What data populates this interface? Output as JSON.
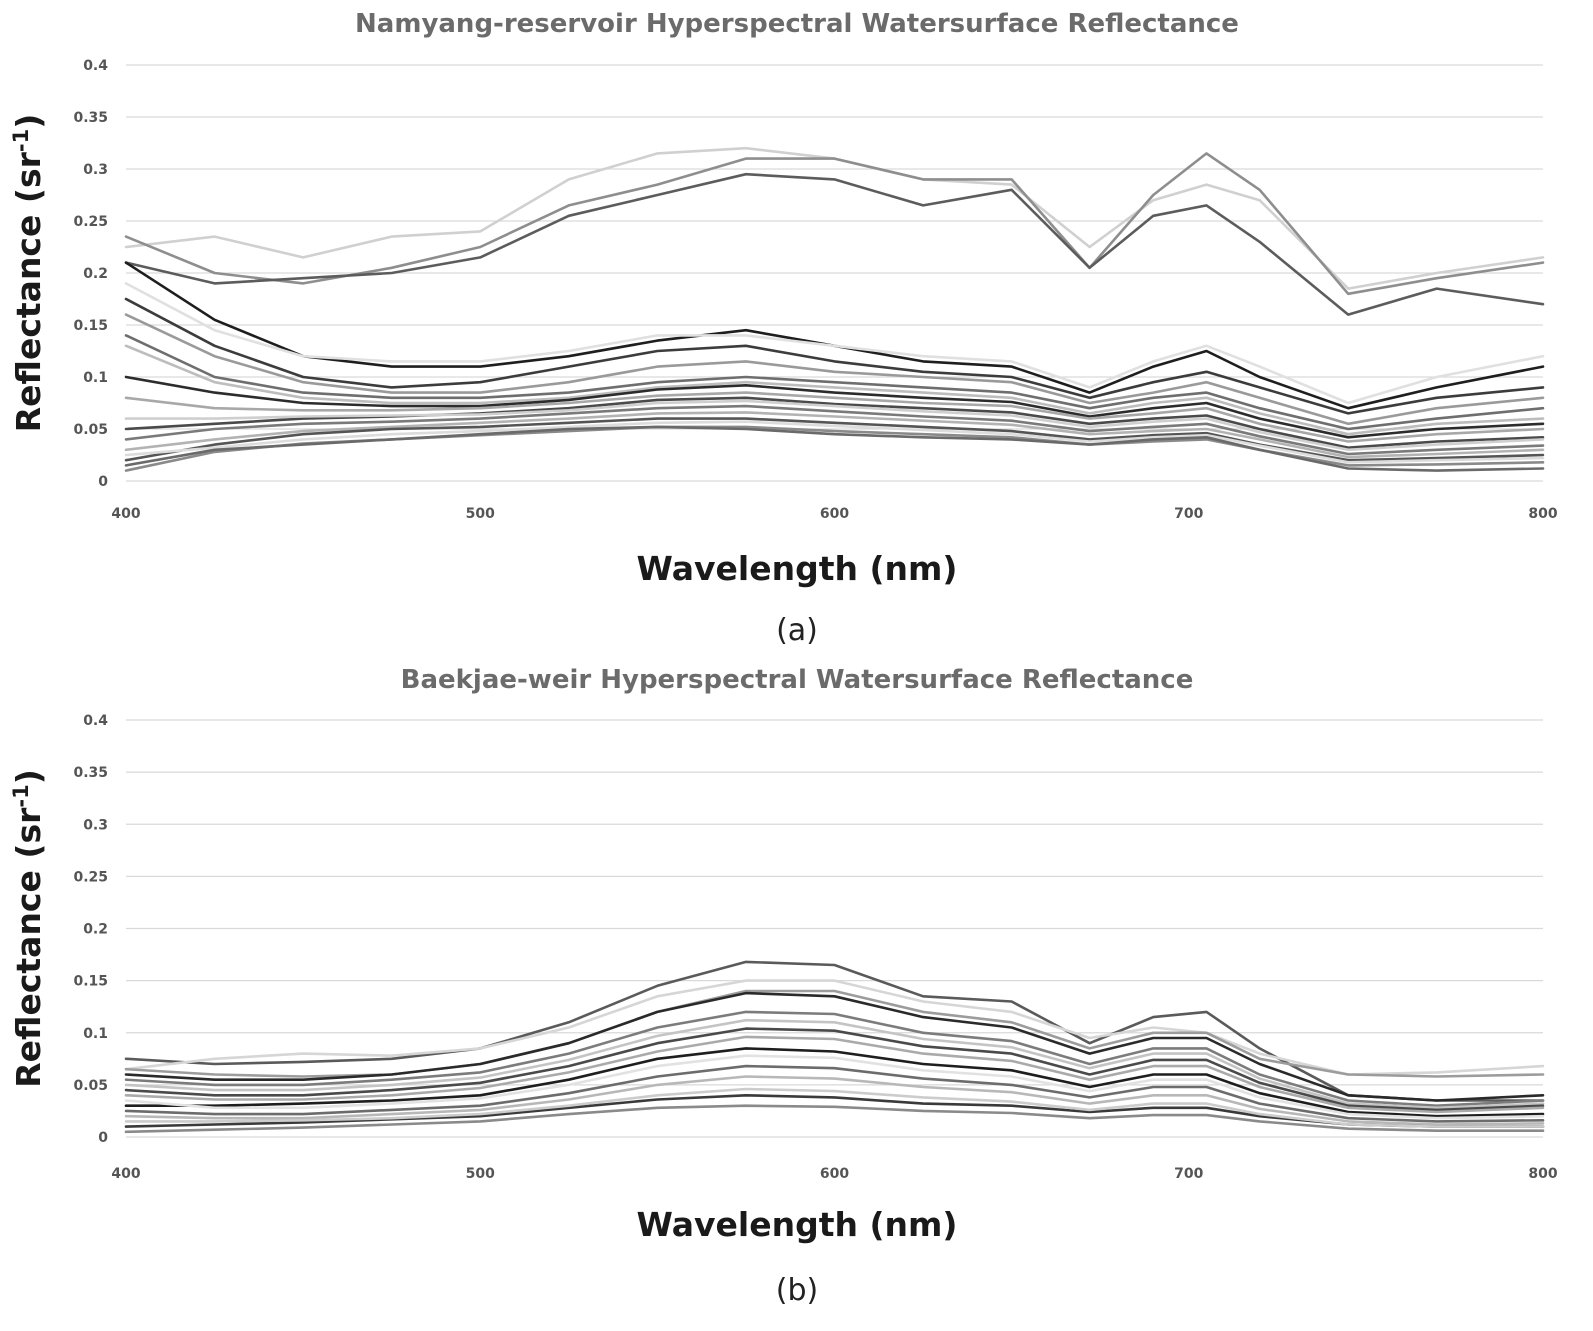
{
  "chart_data": [
    {
      "panel": "a",
      "caption": "(a)",
      "type": "line",
      "title": "Namyang-reservoir Hyperspectral Watersurface Reflectance",
      "xlabel": "Wavelength (nm)",
      "ylabel_main": "Reflectance (sr",
      "ylabel_sup": "-1",
      "ylabel_close": ")",
      "xlim": [
        400,
        800
      ],
      "ylim": [
        0,
        0.4
      ],
      "grid": true,
      "legend": "none",
      "x_ticks": [
        "400",
        "500",
        "600",
        "700",
        "800"
      ],
      "y_ticks": [
        "0",
        "0.05",
        "0.1",
        "0.15",
        "0.2",
        "0.25",
        "0.3",
        "0.35",
        "0.4"
      ],
      "x": [
        400,
        425,
        450,
        475,
        500,
        525,
        550,
        575,
        600,
        625,
        650,
        672,
        690,
        705,
        720,
        745,
        770,
        800
      ],
      "series": [
        {
          "name": "a-high-1",
          "color": "#d0d0d0",
          "values": [
            0.225,
            0.235,
            0.215,
            0.235,
            0.24,
            0.29,
            0.315,
            0.32,
            0.31,
            0.29,
            0.285,
            0.225,
            0.27,
            0.285,
            0.27,
            0.185,
            0.2,
            0.215
          ]
        },
        {
          "name": "a-high-2",
          "color": "#8e8e8e",
          "values": [
            0.235,
            0.2,
            0.19,
            0.205,
            0.225,
            0.265,
            0.285,
            0.31,
            0.31,
            0.29,
            0.29,
            0.205,
            0.275,
            0.315,
            0.28,
            0.18,
            0.195,
            0.21
          ]
        },
        {
          "name": "a-high-3",
          "color": "#5c5c5c",
          "values": [
            0.21,
            0.19,
            0.195,
            0.2,
            0.215,
            0.255,
            0.275,
            0.295,
            0.29,
            0.265,
            0.28,
            0.205,
            0.255,
            0.265,
            0.23,
            0.16,
            0.185,
            0.17
          ]
        },
        {
          "name": "a-mid-1",
          "color": "#1e1e1e",
          "values": [
            0.21,
            0.155,
            0.12,
            0.11,
            0.11,
            0.12,
            0.135,
            0.145,
            0.13,
            0.115,
            0.11,
            0.085,
            0.11,
            0.125,
            0.1,
            0.07,
            0.09,
            0.11
          ]
        },
        {
          "name": "a-mid-2",
          "color": "#e0e0e0",
          "values": [
            0.19,
            0.145,
            0.12,
            0.115,
            0.115,
            0.125,
            0.14,
            0.14,
            0.13,
            0.12,
            0.115,
            0.09,
            0.115,
            0.13,
            0.11,
            0.075,
            0.1,
            0.12
          ]
        },
        {
          "name": "a-mid-3",
          "color": "#3c3c3c",
          "values": [
            0.175,
            0.13,
            0.1,
            0.09,
            0.095,
            0.11,
            0.125,
            0.13,
            0.115,
            0.105,
            0.1,
            0.08,
            0.095,
            0.105,
            0.09,
            0.065,
            0.08,
            0.09
          ]
        },
        {
          "name": "a-mid-4",
          "color": "#9a9a9a",
          "values": [
            0.16,
            0.12,
            0.095,
            0.085,
            0.085,
            0.095,
            0.11,
            0.115,
            0.105,
            0.1,
            0.095,
            0.075,
            0.085,
            0.095,
            0.08,
            0.055,
            0.07,
            0.08
          ]
        },
        {
          "name": "a-mid-5",
          "color": "#6e6e6e",
          "values": [
            0.14,
            0.1,
            0.085,
            0.08,
            0.08,
            0.085,
            0.095,
            0.1,
            0.095,
            0.09,
            0.085,
            0.07,
            0.08,
            0.085,
            0.07,
            0.05,
            0.06,
            0.07
          ]
        },
        {
          "name": "a-mid-6",
          "color": "#bdbdbd",
          "values": [
            0.13,
            0.095,
            0.08,
            0.075,
            0.075,
            0.08,
            0.09,
            0.095,
            0.09,
            0.085,
            0.08,
            0.065,
            0.075,
            0.08,
            0.065,
            0.045,
            0.055,
            0.06
          ]
        },
        {
          "name": "a-mid-7",
          "color": "#2c2c2c",
          "values": [
            0.1,
            0.085,
            0.075,
            0.072,
            0.072,
            0.078,
            0.088,
            0.092,
            0.085,
            0.08,
            0.076,
            0.062,
            0.07,
            0.075,
            0.06,
            0.042,
            0.05,
            0.055
          ]
        },
        {
          "name": "a-low-1",
          "color": "#a8a8a8",
          "values": [
            0.08,
            0.07,
            0.068,
            0.068,
            0.07,
            0.075,
            0.082,
            0.085,
            0.08,
            0.075,
            0.072,
            0.06,
            0.065,
            0.07,
            0.055,
            0.038,
            0.045,
            0.05
          ]
        },
        {
          "name": "a-low-2",
          "color": "#4a4a4a",
          "values": [
            0.05,
            0.055,
            0.06,
            0.062,
            0.065,
            0.07,
            0.078,
            0.08,
            0.074,
            0.07,
            0.066,
            0.055,
            0.06,
            0.063,
            0.05,
            0.032,
            0.038,
            0.042
          ]
        },
        {
          "name": "a-low-3",
          "color": "#cfcfcf",
          "values": [
            0.06,
            0.06,
            0.062,
            0.063,
            0.064,
            0.068,
            0.075,
            0.077,
            0.072,
            0.067,
            0.063,
            0.052,
            0.057,
            0.06,
            0.047,
            0.03,
            0.035,
            0.04
          ]
        },
        {
          "name": "a-low-4",
          "color": "#7a7a7a",
          "values": [
            0.04,
            0.05,
            0.055,
            0.057,
            0.06,
            0.065,
            0.07,
            0.072,
            0.067,
            0.062,
            0.058,
            0.048,
            0.052,
            0.055,
            0.043,
            0.026,
            0.03,
            0.034
          ]
        },
        {
          "name": "a-low-5",
          "color": "#b3b3b3",
          "values": [
            0.03,
            0.04,
            0.048,
            0.052,
            0.056,
            0.06,
            0.065,
            0.066,
            0.062,
            0.058,
            0.054,
            0.045,
            0.048,
            0.05,
            0.04,
            0.023,
            0.026,
            0.03
          ]
        },
        {
          "name": "a-low-6",
          "color": "#555555",
          "values": [
            0.02,
            0.035,
            0.045,
            0.05,
            0.052,
            0.056,
            0.06,
            0.06,
            0.056,
            0.052,
            0.048,
            0.04,
            0.044,
            0.046,
            0.035,
            0.02,
            0.022,
            0.025
          ]
        },
        {
          "name": "a-low-7",
          "color": "#dcdcdc",
          "values": [
            0.025,
            0.032,
            0.04,
            0.045,
            0.048,
            0.052,
            0.056,
            0.057,
            0.053,
            0.049,
            0.045,
            0.038,
            0.042,
            0.044,
            0.034,
            0.018,
            0.02,
            0.022
          ]
        },
        {
          "name": "a-low-8",
          "color": "#8a8a8a",
          "values": [
            0.01,
            0.028,
            0.036,
            0.04,
            0.044,
            0.048,
            0.052,
            0.052,
            0.048,
            0.045,
            0.042,
            0.035,
            0.038,
            0.04,
            0.03,
            0.015,
            0.016,
            0.018
          ]
        },
        {
          "name": "a-low-9",
          "color": "#6a6a6a",
          "values": [
            0.015,
            0.03,
            0.035,
            0.04,
            0.045,
            0.05,
            0.052,
            0.05,
            0.045,
            0.042,
            0.04,
            0.035,
            0.04,
            0.042,
            0.03,
            0.012,
            0.01,
            0.012
          ]
        }
      ]
    },
    {
      "panel": "b",
      "caption": "(b)",
      "type": "line",
      "title": "Baekjae-weir Hyperspectral Watersurface Reflectance",
      "xlabel": "Wavelength (nm)",
      "ylabel_main": "Reflectance (sr",
      "ylabel_sup": "-1",
      "ylabel_close": ")",
      "xlim": [
        400,
        800
      ],
      "ylim": [
        0,
        0.4
      ],
      "grid": true,
      "legend": "none",
      "x_ticks": [
        "400",
        "500",
        "600",
        "700",
        "800"
      ],
      "y_ticks": [
        "0",
        "0.05",
        "0.1",
        "0.15",
        "0.2",
        "0.25",
        "0.3",
        "0.35",
        "0.4"
      ],
      "x": [
        400,
        425,
        450,
        475,
        500,
        525,
        550,
        575,
        600,
        625,
        650,
        672,
        690,
        705,
        720,
        745,
        770,
        800
      ],
      "series": [
        {
          "name": "b-1",
          "color": "#5a5a5a",
          "values": [
            0.075,
            0.07,
            0.072,
            0.075,
            0.085,
            0.11,
            0.145,
            0.168,
            0.165,
            0.135,
            0.13,
            0.09,
            0.115,
            0.12,
            0.085,
            0.04,
            0.035,
            0.035
          ]
        },
        {
          "name": "b-2",
          "color": "#d6d6d6",
          "values": [
            0.065,
            0.075,
            0.08,
            0.078,
            0.085,
            0.105,
            0.135,
            0.15,
            0.15,
            0.13,
            0.12,
            0.095,
            0.105,
            0.1,
            0.08,
            0.06,
            0.062,
            0.068
          ]
        },
        {
          "name": "b-3",
          "color": "#9c9c9c",
          "values": [
            0.065,
            0.06,
            0.058,
            0.06,
            0.07,
            0.09,
            0.12,
            0.14,
            0.14,
            0.12,
            0.11,
            0.085,
            0.1,
            0.1,
            0.075,
            0.06,
            0.058,
            0.06
          ]
        },
        {
          "name": "b-4",
          "color": "#2a2a2a",
          "values": [
            0.06,
            0.055,
            0.055,
            0.06,
            0.07,
            0.09,
            0.12,
            0.138,
            0.135,
            0.115,
            0.105,
            0.08,
            0.095,
            0.095,
            0.07,
            0.04,
            0.035,
            0.04
          ]
        },
        {
          "name": "b-5",
          "color": "#7c7c7c",
          "values": [
            0.055,
            0.05,
            0.05,
            0.055,
            0.062,
            0.08,
            0.105,
            0.12,
            0.118,
            0.1,
            0.092,
            0.07,
            0.085,
            0.085,
            0.06,
            0.035,
            0.03,
            0.035
          ]
        },
        {
          "name": "b-6",
          "color": "#c4c4c4",
          "values": [
            0.05,
            0.045,
            0.045,
            0.05,
            0.057,
            0.074,
            0.097,
            0.112,
            0.11,
            0.094,
            0.086,
            0.066,
            0.08,
            0.08,
            0.056,
            0.032,
            0.028,
            0.032
          ]
        },
        {
          "name": "b-7",
          "color": "#4a4a4a",
          "values": [
            0.045,
            0.04,
            0.04,
            0.045,
            0.052,
            0.068,
            0.09,
            0.104,
            0.102,
            0.087,
            0.08,
            0.06,
            0.074,
            0.074,
            0.052,
            0.03,
            0.026,
            0.03
          ]
        },
        {
          "name": "b-8",
          "color": "#aaaaaa",
          "values": [
            0.04,
            0.036,
            0.036,
            0.04,
            0.047,
            0.062,
            0.082,
            0.096,
            0.094,
            0.08,
            0.073,
            0.055,
            0.068,
            0.068,
            0.048,
            0.028,
            0.024,
            0.028
          ]
        },
        {
          "name": "b-9",
          "color": "#1e1e1e",
          "values": [
            0.03,
            0.03,
            0.032,
            0.035,
            0.04,
            0.055,
            0.075,
            0.085,
            0.082,
            0.07,
            0.064,
            0.048,
            0.06,
            0.06,
            0.042,
            0.024,
            0.02,
            0.022
          ]
        },
        {
          "name": "b-10",
          "color": "#e2e2e2",
          "values": [
            0.035,
            0.028,
            0.028,
            0.032,
            0.037,
            0.05,
            0.068,
            0.078,
            0.076,
            0.064,
            0.058,
            0.044,
            0.055,
            0.055,
            0.038,
            0.022,
            0.018,
            0.02
          ]
        },
        {
          "name": "b-11",
          "color": "#6c6c6c",
          "values": [
            0.025,
            0.022,
            0.022,
            0.026,
            0.03,
            0.042,
            0.058,
            0.068,
            0.066,
            0.056,
            0.05,
            0.038,
            0.048,
            0.048,
            0.032,
            0.018,
            0.015,
            0.016
          ]
        },
        {
          "name": "b-12",
          "color": "#b8b8b8",
          "values": [
            0.02,
            0.018,
            0.018,
            0.022,
            0.026,
            0.036,
            0.05,
            0.058,
            0.056,
            0.048,
            0.043,
            0.032,
            0.04,
            0.04,
            0.027,
            0.015,
            0.012,
            0.013
          ]
        },
        {
          "name": "b-13",
          "color": "#3a3a3a",
          "values": [
            0.01,
            0.012,
            0.014,
            0.017,
            0.02,
            0.028,
            0.036,
            0.04,
            0.038,
            0.032,
            0.03,
            0.024,
            0.028,
            0.028,
            0.02,
            0.012,
            0.01,
            0.01
          ]
        },
        {
          "name": "b-14",
          "color": "#8a8a8a",
          "values": [
            0.005,
            0.007,
            0.009,
            0.012,
            0.015,
            0.022,
            0.028,
            0.03,
            0.029,
            0.025,
            0.023,
            0.018,
            0.021,
            0.021,
            0.015,
            0.008,
            0.006,
            0.006
          ]
        },
        {
          "name": "b-15",
          "color": "#cccccc",
          "values": [
            0.015,
            0.015,
            0.016,
            0.018,
            0.022,
            0.03,
            0.04,
            0.046,
            0.044,
            0.038,
            0.034,
            0.026,
            0.032,
            0.032,
            0.022,
            0.012,
            0.01,
            0.01
          ]
        }
      ]
    }
  ]
}
